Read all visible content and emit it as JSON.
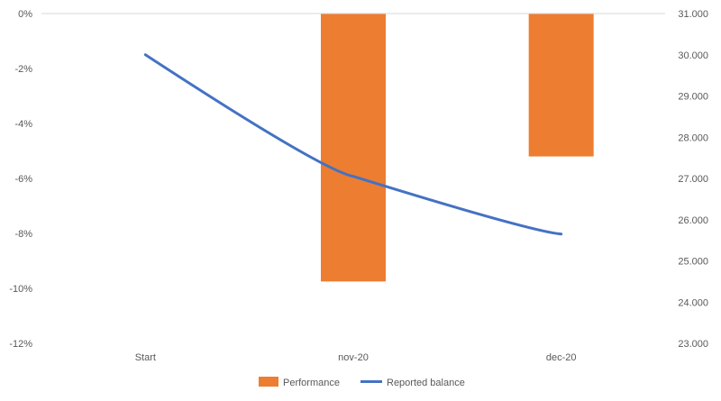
{
  "chart_data": {
    "type": "bar",
    "categories": [
      "Start",
      "nov-20",
      "dec-20"
    ],
    "series": [
      {
        "name": "Performance",
        "kind": "bar",
        "axis": "left",
        "color": "#ED7D31",
        "values": [
          0,
          -9.75,
          -5.2
        ]
      },
      {
        "name": "Reported balance",
        "kind": "line",
        "axis": "right",
        "color": "#4472C4",
        "values": [
          30000,
          27050,
          25650
        ]
      }
    ],
    "y_left": {
      "ylim": [
        -12,
        0
      ],
      "ticks": [
        0,
        -2,
        -4,
        -6,
        -8,
        -10,
        -12
      ],
      "tick_labels": [
        "0%",
        "-2%",
        "-4%",
        "-6%",
        "-8%",
        "-10%",
        "-12%"
      ]
    },
    "y_right": {
      "ylim": [
        23000,
        31000
      ],
      "ticks": [
        31000,
        30000,
        29000,
        28000,
        27000,
        26000,
        25000,
        24000,
        23000
      ],
      "tick_labels": [
        "31.000",
        "30.000",
        "29.000",
        "28.000",
        "27.000",
        "26.000",
        "25.000",
        "24.000",
        "23.000"
      ]
    },
    "legend": {
      "position": "bottom",
      "entries": [
        "Performance",
        "Reported balance"
      ]
    },
    "grid": false
  }
}
